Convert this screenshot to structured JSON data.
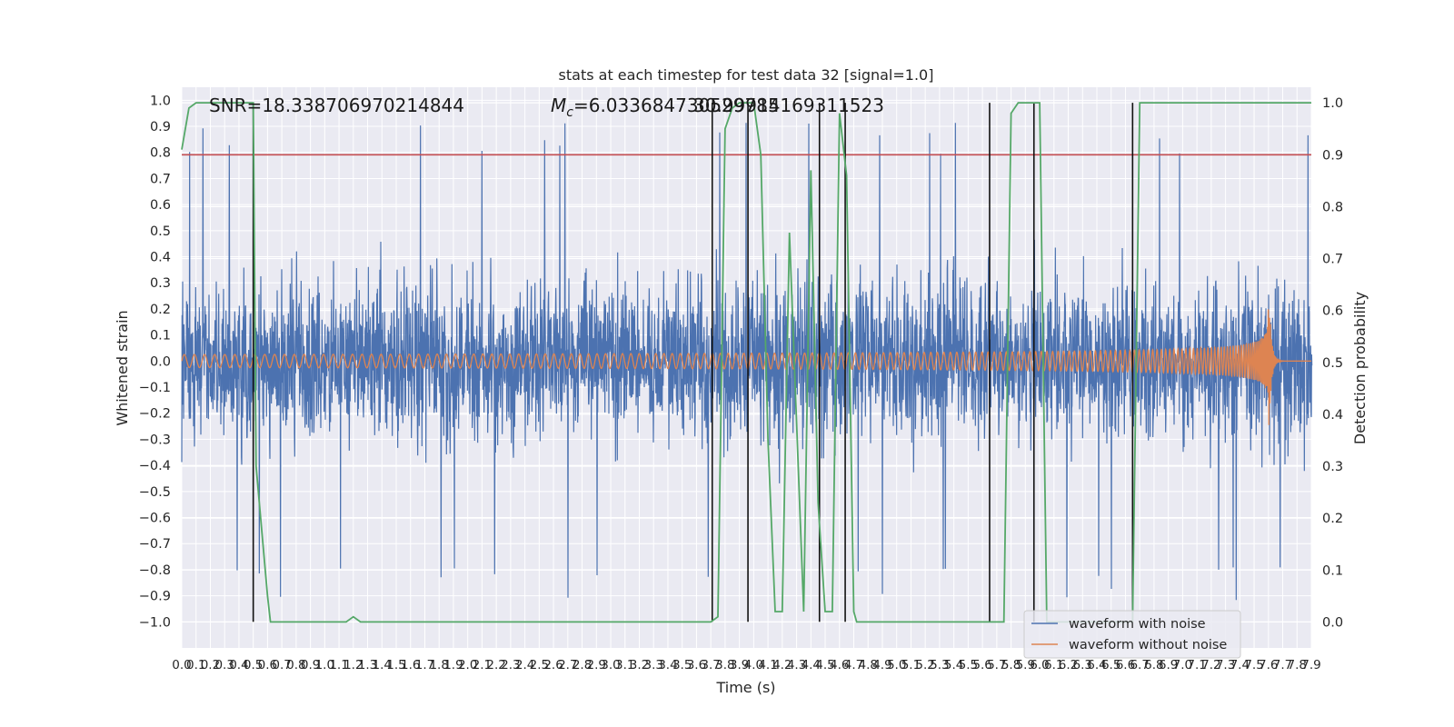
{
  "chart_data": {
    "type": "line",
    "title": "stats at each timestep for test data 32 [signal=1.0]",
    "xlabel": "Time (s)",
    "ylabel": "Whitened strain",
    "y2label": "Detection probability",
    "xlim": [
      0.0,
      7.9
    ],
    "ylim": [
      -1.1,
      1.05
    ],
    "y2lim": [
      -0.05,
      1.03
    ],
    "x_tick_step": 0.1,
    "y_ticks": [
      -1.0,
      -0.9,
      -0.8,
      -0.7,
      -0.6,
      -0.5,
      -0.4,
      -0.3,
      -0.2,
      -0.1,
      0.0,
      0.1,
      0.2,
      0.3,
      0.4,
      0.5,
      0.6,
      0.7,
      0.8,
      0.9,
      1.0
    ],
    "y2_ticks": [
      0.0,
      0.1,
      0.2,
      0.3,
      0.4,
      0.5,
      0.6,
      0.7,
      0.8,
      0.9,
      1.0
    ],
    "annotations": {
      "snr": "SNR=18.338706970214844",
      "mc_prefix": "M",
      "mc_sub": "c",
      "mc_value": "=6.033684730529785",
      "mc_overlap": "30.99914169311523"
    },
    "threshold_line": {
      "y2": 0.9,
      "color": "#c44e52"
    },
    "series": [
      {
        "name": "waveform with noise",
        "color": "#4c72b0",
        "noise_amplitude": 0.45,
        "noise_peak": 0.93
      },
      {
        "name": "waveform without noise",
        "color": "#dd8452",
        "amp_start": 0.025,
        "amp_peak": 0.33,
        "merger_time": 7.6
      },
      {
        "color": "#55a868",
        "axis": "y2",
        "x": [
          0.0,
          0.05,
          0.1,
          0.15,
          0.2,
          0.3,
          0.4,
          0.5,
          0.52,
          0.6,
          0.62,
          0.7,
          0.8,
          0.9,
          1.0,
          1.1,
          1.15,
          1.2,
          1.25,
          1.3,
          1.4,
          1.5,
          2.0,
          2.5,
          3.0,
          3.5,
          3.7,
          3.75,
          3.8,
          3.85,
          3.9,
          4.0,
          4.05,
          4.1,
          4.15,
          4.2,
          4.25,
          4.35,
          4.4,
          4.45,
          4.5,
          4.55,
          4.6,
          4.65,
          4.7,
          4.72,
          4.75,
          4.8,
          4.9,
          5.0,
          5.5,
          5.7,
          5.75,
          5.8,
          5.85,
          5.9,
          6.0,
          6.05,
          6.1,
          6.2,
          6.3,
          6.5,
          6.65,
          6.7,
          6.75,
          6.8,
          6.9,
          7.0,
          7.5,
          7.9
        ],
        "y": [
          0.91,
          0.99,
          1.0,
          1.0,
          1.0,
          1.0,
          1.0,
          1.0,
          0.3,
          0.05,
          0.0,
          0.0,
          0.0,
          0.0,
          0.0,
          0.0,
          0.0,
          0.01,
          0.0,
          0.0,
          0.0,
          0.0,
          0.0,
          0.0,
          0.0,
          0.0,
          0.0,
          0.01,
          0.95,
          0.99,
          1.0,
          1.0,
          0.9,
          0.35,
          0.02,
          0.02,
          0.75,
          0.02,
          0.87,
          0.23,
          0.02,
          0.02,
          0.98,
          0.86,
          0.02,
          0.0,
          0.0,
          0.0,
          0.0,
          0.0,
          0.0,
          0.0,
          0.0,
          0.98,
          1.0,
          1.0,
          1.0,
          0.0,
          0.0,
          0.0,
          0.0,
          0.0,
          0.0,
          1.0,
          1.0,
          1.0,
          1.0,
          1.0,
          1.0,
          1.0
        ]
      }
    ],
    "detection_markers_x": [
      0.5,
      3.71,
      3.96,
      4.46,
      4.64,
      5.65,
      5.96,
      6.65
    ],
    "grid": true,
    "legend_position": "lower-right"
  }
}
